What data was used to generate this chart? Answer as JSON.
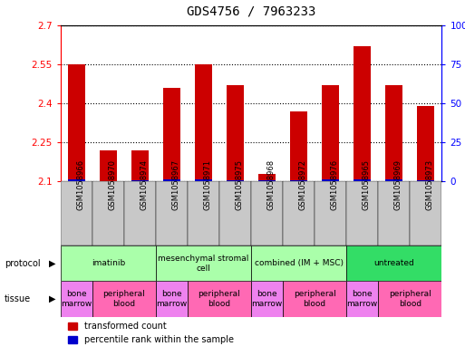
{
  "title": "GDS4756 / 7963233",
  "samples": [
    "GSM1058966",
    "GSM1058970",
    "GSM1058974",
    "GSM1058967",
    "GSM1058971",
    "GSM1058975",
    "GSM1058968",
    "GSM1058972",
    "GSM1058976",
    "GSM1058965",
    "GSM1058969",
    "GSM1058973"
  ],
  "red_values": [
    2.55,
    2.22,
    2.22,
    2.46,
    2.55,
    2.47,
    2.13,
    2.37,
    2.47,
    2.62,
    2.47,
    2.39
  ],
  "blue_values": [
    0.008,
    0.003,
    0.005,
    0.007,
    0.007,
    0.006,
    0.005,
    0.005,
    0.007,
    0.007,
    0.007,
    0.005
  ],
  "y_min": 2.1,
  "y_max": 2.7,
  "y_ticks": [
    2.1,
    2.25,
    2.4,
    2.55,
    2.7
  ],
  "y_right_ticks": [
    0,
    25,
    50,
    75,
    100
  ],
  "protocols": [
    {
      "label": "imatinib",
      "start": 0,
      "end": 3,
      "color": "#AAFFAA"
    },
    {
      "label": "mesenchymal stromal\ncell",
      "start": 3,
      "end": 6,
      "color": "#AAFFAA"
    },
    {
      "label": "combined (IM + MSC)",
      "start": 6,
      "end": 9,
      "color": "#AAFFAA"
    },
    {
      "label": "untreated",
      "start": 9,
      "end": 12,
      "color": "#33DD66"
    }
  ],
  "tissues": [
    {
      "label": "bone\nmarrow",
      "start": 0,
      "end": 1,
      "color": "#EE82EE"
    },
    {
      "label": "peripheral\nblood",
      "start": 1,
      "end": 3,
      "color": "#FF69B4"
    },
    {
      "label": "bone\nmarrow",
      "start": 3,
      "end": 4,
      "color": "#EE82EE"
    },
    {
      "label": "peripheral\nblood",
      "start": 4,
      "end": 6,
      "color": "#FF69B4"
    },
    {
      "label": "bone\nmarrow",
      "start": 6,
      "end": 7,
      "color": "#EE82EE"
    },
    {
      "label": "peripheral\nblood",
      "start": 7,
      "end": 9,
      "color": "#FF69B4"
    },
    {
      "label": "bone\nmarrow",
      "start": 9,
      "end": 10,
      "color": "#EE82EE"
    },
    {
      "label": "peripheral\nblood",
      "start": 10,
      "end": 12,
      "color": "#FF69B4"
    }
  ],
  "bar_color": "#CC0000",
  "blue_color": "#0000CC",
  "background_color": "#FFFFFF",
  "title_fontsize": 10,
  "label_fontsize": 6,
  "tick_fontsize": 7.5,
  "xtick_area_color": "#C8C8C8"
}
